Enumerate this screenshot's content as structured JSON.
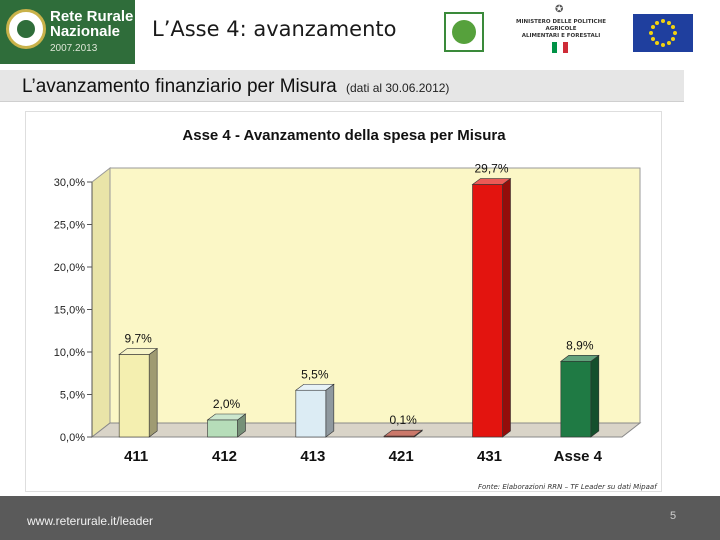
{
  "header": {
    "logo_line1": "Rete Rurale",
    "logo_line2": "Nazionale",
    "logo_years": "2007.2013",
    "slide_title": "L’Asse 4: avanzamento",
    "ministry_line1": "MINISTERO DELLE POLITICHE AGRICOLE",
    "ministry_line2": "ALIMENTARI E FORESTALI"
  },
  "subtitle": {
    "main": "L’avanzamento finanziario per Misura",
    "note": "(dati al 30.06.2012)"
  },
  "colors": {
    "header_green": "#2f6d3a",
    "eu_blue": "#1f3f9e",
    "eu_star": "#f2d20f",
    "italy_green": "#009246",
    "italy_white": "#ffffff",
    "italy_red": "#ce2b37",
    "plot_background": "#fbf7c6",
    "footer": "#5a5a5a"
  },
  "chart_data": {
    "type": "bar",
    "title": "Asse 4 - Avanzamento della spesa per Misura",
    "categories": [
      "411",
      "412",
      "413",
      "421",
      "431",
      "Asse 4"
    ],
    "values": [
      9.7,
      2.0,
      5.5,
      0.1,
      29.7,
      8.9
    ],
    "data_labels": [
      "9,7%",
      "2,0%",
      "5,5%",
      "0,1%",
      "29,7%",
      "8,9%"
    ],
    "bar_colors": [
      "#f4efb0",
      "#b6ddb9",
      "#dcecf4",
      "#b43e2a",
      "#e3140f",
      "#1f7a44"
    ],
    "y_ticks": [
      0,
      5,
      10,
      15,
      20,
      25,
      30
    ],
    "y_tick_labels": [
      "0,0%",
      "5,0%",
      "10,0%",
      "15,0%",
      "20,0%",
      "25,0%",
      "30,0%"
    ],
    "ylim": [
      0,
      30
    ],
    "xlabel": "",
    "ylabel": "",
    "grid": false,
    "legend": "none",
    "three_d": true
  },
  "source": "Fonte: Elaborazioni RRN – TF Leader su dati Mipaaf",
  "footer": {
    "url": "www.reterurale.it/leader",
    "page_number": "5"
  }
}
